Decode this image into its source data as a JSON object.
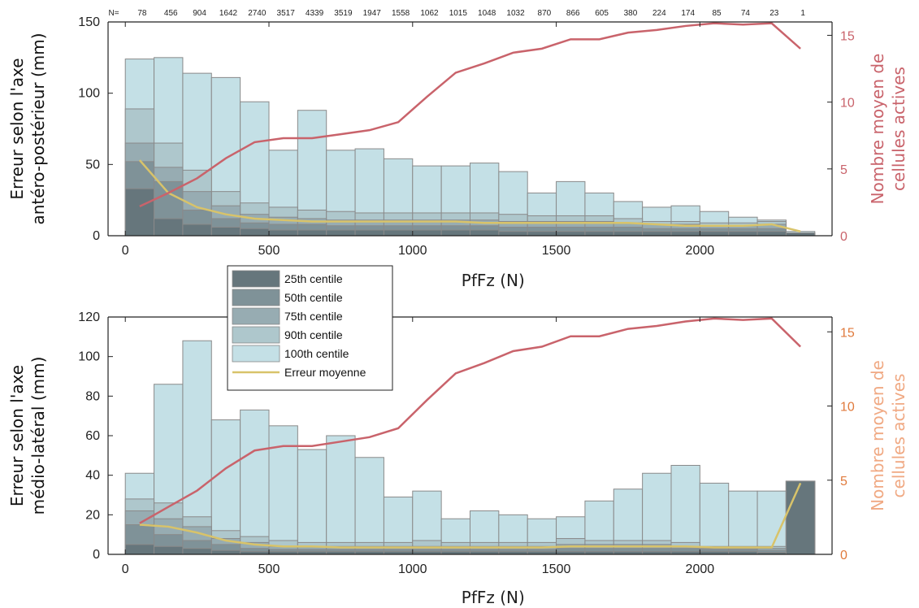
{
  "colors": {
    "c25": "#66767c",
    "c50": "#7f9298",
    "c75": "#97acb2",
    "c90": "#aec7cc",
    "c100": "#c4e0e6",
    "bar_edge": "#8a8a8a",
    "mean_error": "#d8c36a",
    "active_cells": "#c9636b",
    "axis2_top": "#c9636b",
    "axis2_bottom_ticks": "#e07a3c",
    "axis2_bottom_label": "#f0a983"
  },
  "legend": {
    "items": [
      {
        "label": "25th centile",
        "key": "c25",
        "kind": "box"
      },
      {
        "label": "50th centile",
        "key": "c50",
        "kind": "box"
      },
      {
        "label": "75th centile",
        "key": "c75",
        "kind": "box"
      },
      {
        "label": "90th centile",
        "key": "c90",
        "kind": "box"
      },
      {
        "label": "100th centile",
        "key": "c100",
        "kind": "box"
      },
      {
        "label": "Erreur moyenne",
        "key": "mean_error",
        "kind": "line"
      }
    ]
  },
  "chart_data": [
    {
      "type": "bar",
      "title": "",
      "xlabel": "PfFz (N)",
      "ylabel_lines": [
        "Erreur selon l'axe",
        "antéro-postérieur (mm)"
      ],
      "y2label_lines": [
        "Nombre moyen de",
        "cellules actives"
      ],
      "xlim": [
        -60,
        2460
      ],
      "ylim": [
        0,
        150
      ],
      "y2lim": [
        0,
        16
      ],
      "xticks": [
        0,
        500,
        1000,
        1500,
        2000
      ],
      "yticks": [
        0,
        50,
        100,
        150
      ],
      "y2ticks": [
        0,
        5,
        10,
        15
      ],
      "n_prefix": "N=",
      "n_counts": [
        "78",
        "456",
        "904",
        "1642",
        "2740",
        "3517",
        "4339",
        "3519",
        "1947",
        "1558",
        "1062",
        "1015",
        "1048",
        "1032",
        "870",
        "866",
        "605",
        "380",
        "224",
        "174",
        "85",
        "74",
        "23",
        "1"
      ],
      "bin_width": 100,
      "bin_centers": [
        50,
        150,
        250,
        350,
        450,
        550,
        650,
        750,
        850,
        950,
        1050,
        1150,
        1250,
        1350,
        1450,
        1550,
        1650,
        1750,
        1850,
        1950,
        2050,
        2150,
        2250,
        2350
      ],
      "series": [
        {
          "name": "25th centile",
          "key": "c25",
          "values": [
            33,
            12,
            8,
            6,
            5,
            4,
            4,
            4,
            4,
            4,
            4,
            4,
            4,
            3,
            3,
            3,
            3,
            3,
            3,
            3,
            3,
            3,
            3,
            2
          ]
        },
        {
          "name": "50th centile",
          "key": "c50",
          "values": [
            52,
            38,
            18,
            12,
            9,
            8,
            8,
            7,
            7,
            7,
            7,
            7,
            7,
            6,
            6,
            6,
            6,
            6,
            5,
            5,
            5,
            5,
            5,
            2
          ]
        },
        {
          "name": "75th centile",
          "key": "c75",
          "values": [
            65,
            48,
            31,
            21,
            15,
            13,
            12,
            11,
            11,
            11,
            11,
            11,
            11,
            10,
            10,
            10,
            10,
            9,
            8,
            8,
            7,
            7,
            8,
            2
          ]
        },
        {
          "name": "90th centile",
          "key": "c90",
          "values": [
            89,
            65,
            46,
            31,
            23,
            20,
            18,
            17,
            16,
            16,
            16,
            16,
            16,
            15,
            14,
            14,
            14,
            12,
            10,
            10,
            9,
            9,
            10,
            2
          ]
        },
        {
          "name": "100th centile",
          "key": "c100",
          "values": [
            124,
            125,
            114,
            111,
            94,
            60,
            88,
            60,
            61,
            54,
            49,
            49,
            51,
            45,
            30,
            38,
            30,
            24,
            20,
            21,
            17,
            13,
            11,
            3
          ]
        }
      ],
      "mean_error": {
        "name": "Erreur moyenne",
        "x": [
          50,
          150,
          250,
          350,
          450,
          550,
          650,
          750,
          850,
          950,
          1050,
          1150,
          1250,
          1350,
          1450,
          1550,
          1650,
          1750,
          1850,
          1950,
          2050,
          2150,
          2250,
          2350
        ],
        "y": [
          53,
          30,
          20,
          15,
          12,
          11,
          10,
          10,
          10,
          10,
          10,
          10,
          9,
          9,
          9,
          9,
          9,
          9,
          8,
          7,
          7,
          7,
          8,
          3
        ]
      },
      "active_cells": {
        "x": [
          50,
          150,
          250,
          350,
          450,
          550,
          650,
          750,
          850,
          950,
          1050,
          1150,
          1250,
          1350,
          1450,
          1550,
          1650,
          1750,
          1850,
          1950,
          2050,
          2150,
          2250,
          2350
        ],
        "y": [
          2.2,
          3.2,
          4.3,
          5.8,
          7.0,
          7.3,
          7.3,
          7.6,
          7.9,
          8.5,
          10.4,
          12.2,
          12.9,
          13.7,
          14.0,
          14.7,
          14.7,
          15.2,
          15.4,
          15.7,
          15.9,
          15.8,
          15.9,
          14.0
        ]
      }
    },
    {
      "type": "bar",
      "title": "",
      "xlabel": "PfFz (N)",
      "ylabel_lines": [
        "Erreur selon l'axe",
        "médio-latéral (mm)"
      ],
      "y2label_lines": [
        "Nombre moyen de",
        "cellules actives"
      ],
      "xlim": [
        -60,
        2460
      ],
      "ylim": [
        0,
        120
      ],
      "y2lim": [
        0,
        16
      ],
      "xticks": [
        0,
        500,
        1000,
        1500,
        2000
      ],
      "yticks": [
        0,
        20,
        40,
        60,
        80,
        100,
        120
      ],
      "y2ticks": [
        0,
        5,
        10,
        15
      ],
      "bin_width": 100,
      "bin_centers": [
        50,
        150,
        250,
        350,
        450,
        550,
        650,
        750,
        850,
        950,
        1050,
        1150,
        1250,
        1350,
        1450,
        1550,
        1650,
        1750,
        1850,
        1950,
        2050,
        2150,
        2250,
        2350
      ],
      "series": [
        {
          "name": "25th centile",
          "key": "c25",
          "values": [
            5,
            4,
            3,
            2,
            1.5,
            1.5,
            1.5,
            1.5,
            1.5,
            1.5,
            1.5,
            1.5,
            1.5,
            1.5,
            1.5,
            1.5,
            1.5,
            1.5,
            1.5,
            1.5,
            1.5,
            1.5,
            1,
            37
          ]
        },
        {
          "name": "50th centile",
          "key": "c50",
          "values": [
            15,
            10,
            7,
            5,
            3,
            2.5,
            2.5,
            2.5,
            2.5,
            2.5,
            2.5,
            2.5,
            2.5,
            2.5,
            2.5,
            3,
            3,
            3,
            3,
            3,
            2.5,
            2.5,
            2,
            37
          ]
        },
        {
          "name": "75th centile",
          "key": "c75",
          "values": [
            22,
            18,
            14,
            8,
            6,
            4,
            4,
            4,
            4,
            4,
            4,
            4,
            4,
            4,
            4,
            5,
            5,
            5,
            5,
            4,
            3,
            3,
            3,
            37
          ]
        },
        {
          "name": "90th centile",
          "key": "c90",
          "values": [
            28,
            26,
            19,
            12,
            9,
            7,
            6,
            6,
            6,
            6,
            7,
            6,
            6,
            6,
            6,
            8,
            7,
            7,
            7,
            6,
            4,
            4,
            4,
            37
          ]
        },
        {
          "name": "100th centile",
          "key": "c100",
          "values": [
            41,
            86,
            108,
            68,
            73,
            65,
            53,
            60,
            49,
            29,
            32,
            18,
            22,
            20,
            18,
            19,
            27,
            33,
            41,
            45,
            36,
            32,
            32,
            37
          ]
        }
      ],
      "mean_error": {
        "name": "Erreur moyenne",
        "x": [
          50,
          150,
          250,
          350,
          450,
          550,
          650,
          750,
          850,
          950,
          1050,
          1150,
          1250,
          1350,
          1450,
          1550,
          1650,
          1750,
          1850,
          1950,
          2050,
          2150,
          2250,
          2350
        ],
        "y": [
          15,
          14,
          11,
          7,
          5,
          4,
          4,
          3.5,
          3.5,
          3.5,
          3.5,
          3.5,
          3.5,
          3.5,
          3.5,
          4,
          4,
          4,
          4,
          4,
          3.5,
          3.5,
          3.5,
          36
        ]
      },
      "active_cells": {
        "x": [
          50,
          150,
          250,
          350,
          450,
          550,
          650,
          750,
          850,
          950,
          1050,
          1150,
          1250,
          1350,
          1450,
          1550,
          1650,
          1750,
          1850,
          1950,
          2050,
          2150,
          2250,
          2350
        ],
        "y": [
          2.1,
          3.2,
          4.3,
          5.8,
          7.0,
          7.3,
          7.3,
          7.6,
          7.9,
          8.5,
          10.4,
          12.2,
          12.9,
          13.7,
          14.0,
          14.7,
          14.7,
          15.2,
          15.4,
          15.7,
          15.9,
          15.8,
          15.9,
          14.0
        ]
      }
    }
  ]
}
